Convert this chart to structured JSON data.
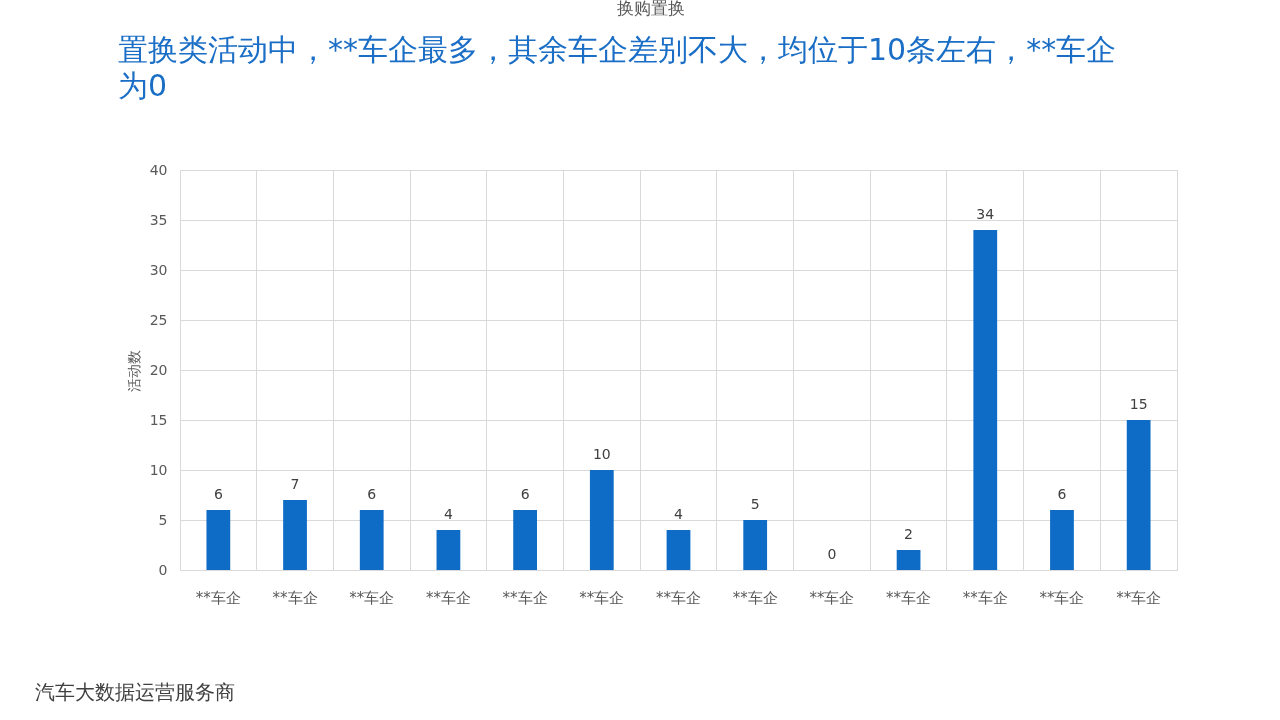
{
  "chart_data": {
    "type": "bar",
    "title": "置换类活动中，**车企最多，其余车企差别不大，均位于10条左右，**车企为0",
    "subtitle": "换购置换",
    "ylabel": "活动数",
    "categories": [
      "**车企",
      "**车企",
      "**车企",
      "**车企",
      "**车企",
      "**车企",
      "**车企",
      "**车企",
      "**车企",
      "**车企",
      "**车企",
      "**车企",
      "**车企"
    ],
    "values": [
      6,
      7,
      6,
      4,
      6,
      10,
      4,
      5,
      0,
      2,
      34,
      6,
      15
    ],
    "color": "#0f6cc6",
    "ylim": [
      0,
      40
    ],
    "yticks": [
      0,
      5,
      10,
      15,
      20,
      25,
      30,
      35,
      40
    ],
    "grid": true,
    "data_labels": true,
    "annotations": [
      "汽车大数据运营服务商"
    ]
  }
}
